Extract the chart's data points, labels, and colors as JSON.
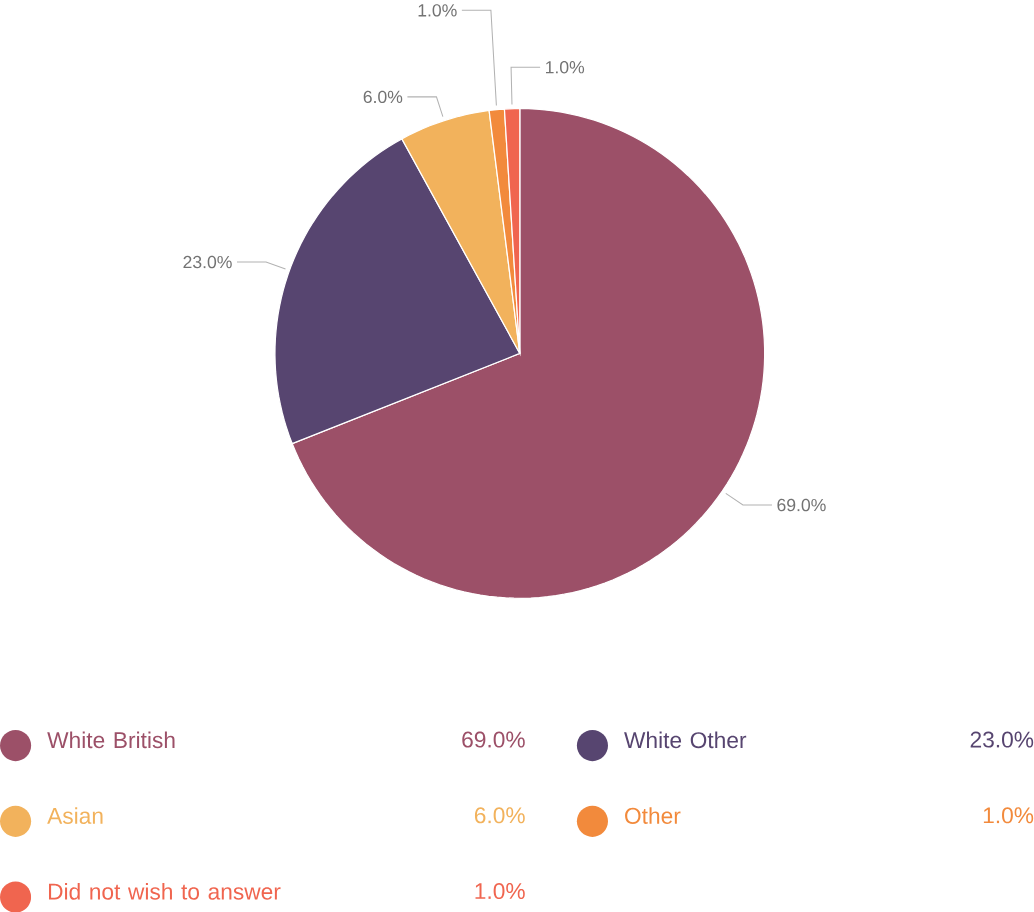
{
  "chart_data": {
    "type": "pie",
    "categories": [
      "White British",
      "White Other",
      "Asian",
      "Other",
      "Did not wish to answer"
    ],
    "values": [
      69.0,
      23.0,
      6.0,
      1.0,
      1.0
    ],
    "value_labels": [
      "69.0%",
      "23.0%",
      "6.0%",
      "1.0%",
      "1.0%"
    ],
    "colors": [
      "#9c5068",
      "#574570",
      "#f2b25c",
      "#f28a3c",
      "#f0654f"
    ],
    "legend": "bottom"
  }
}
